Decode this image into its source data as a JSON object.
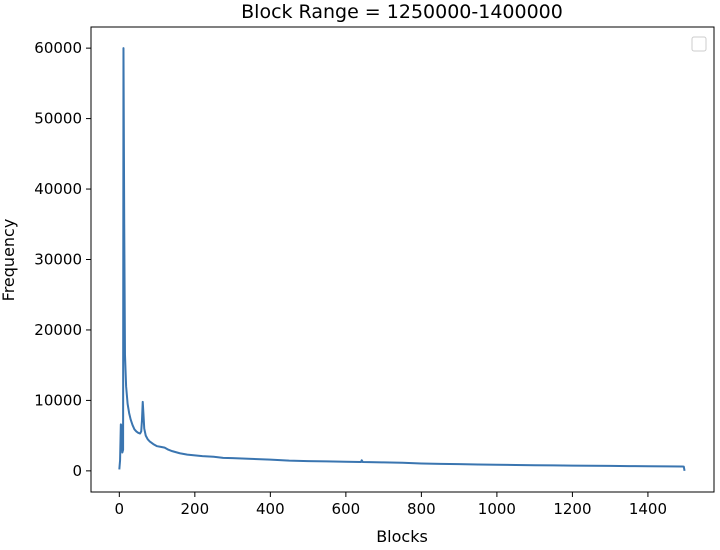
{
  "chart_data": {
    "type": "line",
    "title": "Block Range = 1250000-1400000",
    "xlabel": "Blocks",
    "ylabel": "Frequency",
    "xlim": [
      -75,
      1575
    ],
    "ylim": [
      -3000,
      63000
    ],
    "xticks": [
      0,
      200,
      400,
      600,
      800,
      1000,
      1200,
      1400
    ],
    "yticks": [
      0,
      10000,
      20000,
      30000,
      40000,
      50000,
      60000
    ],
    "grid": false,
    "legend": {
      "placement": "top-right",
      "entries": []
    },
    "series": [
      {
        "color": "#3a75b0",
        "points": [
          [
            0,
            200
          ],
          [
            2,
            1500
          ],
          [
            4,
            6600
          ],
          [
            6,
            6400
          ],
          [
            8,
            2600
          ],
          [
            10,
            3000
          ],
          [
            11,
            60000
          ],
          [
            13,
            35000
          ],
          [
            15,
            16500
          ],
          [
            18,
            12000
          ],
          [
            22,
            9500
          ],
          [
            26,
            8200
          ],
          [
            30,
            7300
          ],
          [
            35,
            6500
          ],
          [
            40,
            5900
          ],
          [
            45,
            5600
          ],
          [
            50,
            5400
          ],
          [
            55,
            5300
          ],
          [
            58,
            5600
          ],
          [
            60,
            7200
          ],
          [
            62,
            9800
          ],
          [
            64,
            8000
          ],
          [
            66,
            6000
          ],
          [
            70,
            5000
          ],
          [
            75,
            4500
          ],
          [
            80,
            4200
          ],
          [
            90,
            3800
          ],
          [
            100,
            3500
          ],
          [
            110,
            3400
          ],
          [
            120,
            3300
          ],
          [
            130,
            3000
          ],
          [
            140,
            2800
          ],
          [
            160,
            2500
          ],
          [
            180,
            2300
          ],
          [
            200,
            2200
          ],
          [
            220,
            2100
          ],
          [
            250,
            2000
          ],
          [
            275,
            1850
          ],
          [
            300,
            1800
          ],
          [
            350,
            1700
          ],
          [
            400,
            1600
          ],
          [
            450,
            1450
          ],
          [
            500,
            1380
          ],
          [
            550,
            1350
          ],
          [
            600,
            1300
          ],
          [
            640,
            1250
          ],
          [
            642,
            1500
          ],
          [
            645,
            1250
          ],
          [
            700,
            1200
          ],
          [
            750,
            1150
          ],
          [
            800,
            1050
          ],
          [
            850,
            1000
          ],
          [
            900,
            950
          ],
          [
            950,
            900
          ],
          [
            1000,
            870
          ],
          [
            1050,
            830
          ],
          [
            1100,
            800
          ],
          [
            1150,
            780
          ],
          [
            1200,
            750
          ],
          [
            1250,
            720
          ],
          [
            1300,
            700
          ],
          [
            1350,
            680
          ],
          [
            1400,
            660
          ],
          [
            1450,
            640
          ],
          [
            1490,
            620
          ],
          [
            1495,
            600
          ],
          [
            1497,
            0
          ]
        ]
      }
    ]
  }
}
